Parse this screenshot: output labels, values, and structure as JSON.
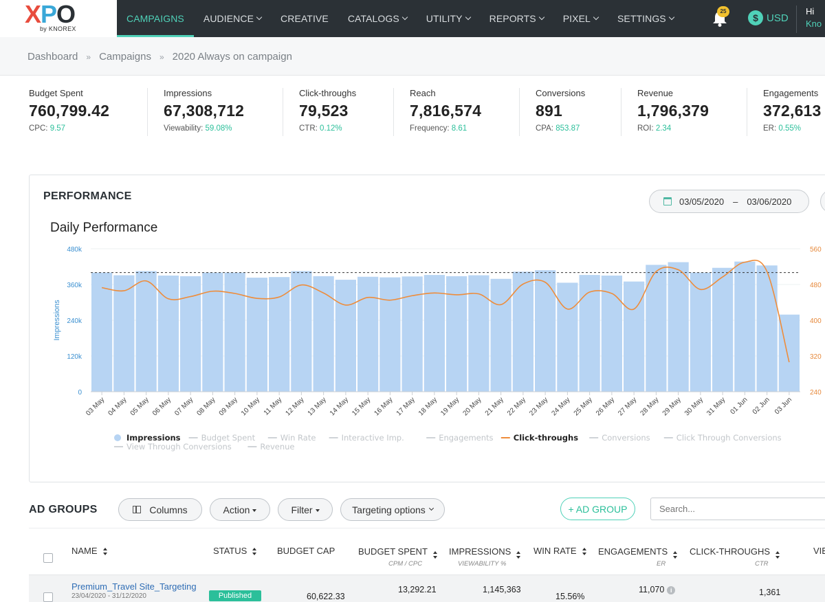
{
  "brand": {
    "logo_x": "X",
    "logo_p": "P",
    "logo_o": "O",
    "sub": "by KNOREX"
  },
  "nav": [
    {
      "label": "CAMPAIGNS",
      "active": true,
      "dropdown": false
    },
    {
      "label": "AUDIENCE",
      "dropdown": true
    },
    {
      "label": "CREATIVE",
      "dropdown": false
    },
    {
      "label": "CATALOGS",
      "dropdown": true
    },
    {
      "label": "UTILITY",
      "dropdown": true
    },
    {
      "label": "REPORTS",
      "dropdown": true
    },
    {
      "label": "PIXEL",
      "dropdown": true
    },
    {
      "label": "SETTINGS",
      "dropdown": true
    }
  ],
  "notifications": {
    "count": "25"
  },
  "currency": {
    "symbol": "$",
    "label": "USD"
  },
  "user": {
    "greeting": "Hi",
    "company": "Kno"
  },
  "breadcrumb": [
    "Dashboard",
    "Campaigns",
    "2020 Always on campaign"
  ],
  "stats": [
    {
      "label": "Budget Spent",
      "value": "760,799.42",
      "sub_label": "CPC:",
      "sub_value": "9.57"
    },
    {
      "label": "Impressions",
      "value": "67,308,712",
      "sub_label": "Viewability:",
      "sub_value": "59.08%"
    },
    {
      "label": "Click-throughs",
      "value": "79,523",
      "sub_label": "CTR:",
      "sub_value": "0.12%"
    },
    {
      "label": "Reach",
      "value": "7,816,574",
      "sub_label": "Frequency:",
      "sub_value": "8.61"
    },
    {
      "label": "Conversions",
      "value": "891",
      "sub_label": "CPA:",
      "sub_value": "853.87"
    },
    {
      "label": "Revenue",
      "value": "1,796,379",
      "sub_label": "ROI:",
      "sub_value": "2.34"
    },
    {
      "label": "Engagements",
      "value": "372,613",
      "sub_label": "ER:",
      "sub_value": "0.55%"
    }
  ],
  "performance": {
    "title": "PERFORMANCE",
    "date_from": "03/05/2020",
    "date_sep": "–",
    "date_to": "03/06/2020"
  },
  "chart_data": {
    "type": "bar",
    "title": "Daily Performance",
    "ylabel": "Impressions",
    "y_ticks": [
      "480k",
      "360k",
      "240k",
      "120k",
      "0"
    ],
    "ylim": [
      0,
      480000
    ],
    "y2_ticks": [
      "560",
      "480",
      "400",
      "320",
      "240"
    ],
    "y2lim": [
      240,
      560
    ],
    "reference_line": 400000,
    "categories": [
      "03 May",
      "04 May",
      "05 May",
      "06 May",
      "07 May",
      "08 May",
      "09 May",
      "10 May",
      "11 May",
      "12 May",
      "13 May",
      "14 May",
      "15 May",
      "16 May",
      "17 May",
      "18 May",
      "19 May",
      "20 May",
      "21 May",
      "22 May",
      "23 May",
      "24 May",
      "25 May",
      "26 May",
      "27 May",
      "28 May",
      "29 May",
      "30 May",
      "31 May",
      "01 Jun",
      "02 Jun",
      "03 Jun"
    ],
    "series": [
      {
        "name": "Impressions",
        "kind": "bar",
        "axis": "left",
        "color": "#b7d4f3",
        "values": [
          400000,
          391000,
          405000,
          390000,
          388000,
          400000,
          400000,
          383000,
          385000,
          405000,
          388000,
          376000,
          386000,
          384000,
          387000,
          392000,
          388000,
          391000,
          379000,
          403000,
          408000,
          366000,
          392000,
          390000,
          370000,
          426000,
          435000,
          400000,
          416000,
          437000,
          424000,
          259000
        ]
      },
      {
        "name": "Click-throughs",
        "kind": "line",
        "axis": "right",
        "color": "#ee8c3a",
        "values": [
          473,
          466,
          488,
          448,
          453,
          465,
          460,
          449,
          452,
          479,
          461,
          434,
          451,
          445,
          455,
          461,
          457,
          459,
          435,
          481,
          485,
          425,
          463,
          460,
          425,
          509,
          513,
          469,
          497,
          530,
          509,
          306
        ]
      }
    ],
    "legend": [
      {
        "name": "Impressions",
        "active": true,
        "marker": "dot"
      },
      {
        "name": "Budget Spent",
        "active": false
      },
      {
        "name": "Win Rate",
        "active": false
      },
      {
        "name": "Interactive Imp.",
        "active": false
      },
      {
        "name": "Engagements",
        "active": false
      },
      {
        "name": "Click-throughs",
        "active": true,
        "marker": "line"
      },
      {
        "name": "Conversions",
        "active": false
      },
      {
        "name": "Click Through Conversions",
        "active": false
      },
      {
        "name": "View Through Conversions",
        "active": false
      },
      {
        "name": "Revenue",
        "active": false
      }
    ]
  },
  "ad_groups": {
    "title": "AD GROUPS",
    "buttons": {
      "columns": "Columns",
      "action": "Action",
      "filter": "Filter",
      "targeting": "Targeting options",
      "add": "+ AD GROUP"
    },
    "search_placeholder": "Search...",
    "columns": {
      "name": "NAME",
      "status": "STATUS",
      "budget_cap": "BUDGET CAP",
      "budget_spent": "BUDGET SPENT",
      "budget_spent_sub": "CPM / CPC",
      "impressions": "IMPRESSIONS",
      "impressions_sub": "VIEWABILITY %",
      "win_rate": "WIN RATE",
      "engagements": "ENGAGEMENTS",
      "engagements_sub": "ER",
      "clicks": "CLICK-THROUGHS",
      "clicks_sub": "CTR",
      "more": "VIE"
    },
    "rows": [
      {
        "name": "Premium_Travel Site_Targeting",
        "dates": "23/04/2020 - 31/12/2020",
        "status": "Published",
        "budget_cap": "60,622.33",
        "budget_spent": "13,292.21",
        "impressions": "1,145,363",
        "win_rate": "15.56%",
        "engagements": "11,070",
        "clicks": "1,361"
      }
    ]
  }
}
